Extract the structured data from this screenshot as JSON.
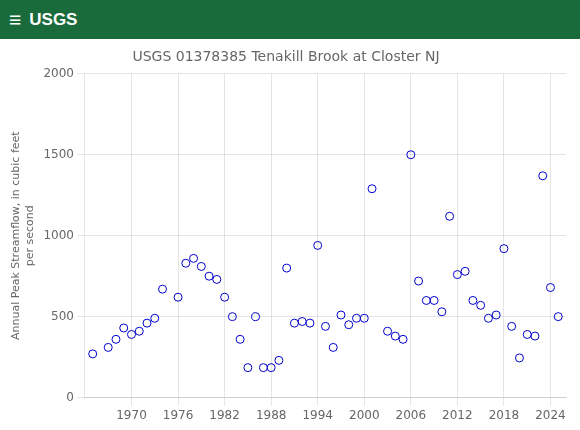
{
  "chart_data": {
    "type": "scatter",
    "title": "USGS 01378385 Tenakill Brook at Closter NJ",
    "ylabel": "Annual Peak Streamflow, in cubic feet\nper second",
    "annotations": [
      "≡",
      "USGS"
    ],
    "color": "#0000cc",
    "marker": "circle",
    "grid": true,
    "xlim": [
      1964,
      2026
    ],
    "ylim": [
      0,
      2000
    ],
    "xticks": [
      1970,
      1976,
      1982,
      1988,
      1994,
      2000,
      2006,
      2012,
      2018,
      2024
    ],
    "yticks": [
      0,
      500,
      1000,
      1500,
      2000
    ],
    "x": [
      1965,
      1967,
      1968,
      1969,
      1970,
      1971,
      1972,
      1973,
      1974,
      1976,
      1977,
      1978,
      1979,
      1980,
      1981,
      1982,
      1983,
      1984,
      1985,
      1986,
      1987,
      1988,
      1989,
      1990,
      1991,
      1992,
      1993,
      1994,
      1995,
      1996,
      1997,
      1998,
      1999,
      2000,
      2001,
      2003,
      2004,
      2005,
      2006,
      2007,
      2008,
      2009,
      2010,
      2011,
      2012,
      2013,
      2014,
      2015,
      2016,
      2017,
      2018,
      2019,
      2020,
      2021,
      2022,
      2023,
      2024,
      2025
    ],
    "values": [
      270,
      310,
      360,
      430,
      390,
      410,
      460,
      490,
      670,
      620,
      830,
      860,
      810,
      750,
      730,
      620,
      500,
      360,
      185,
      500,
      185,
      185,
      230,
      800,
      460,
      470,
      460,
      940,
      440,
      310,
      510,
      450,
      490,
      490,
      1290,
      410,
      380,
      360,
      1500,
      720,
      600,
      600,
      530,
      1120,
      760,
      780,
      600,
      570,
      490,
      510,
      920,
      440,
      245,
      390,
      380,
      1370,
      680,
      500
    ]
  }
}
